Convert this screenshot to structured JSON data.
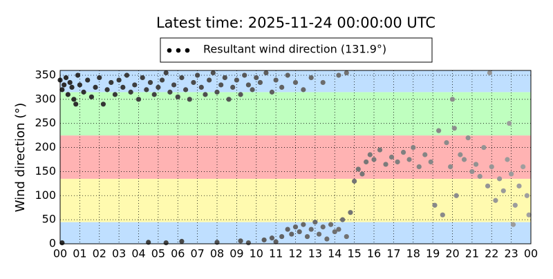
{
  "chart_data": {
    "type": "scatter",
    "title": "Latest time: 2025-11-24 00:00:00 UTC",
    "y_label": "Wind direction (°)",
    "legend": "top",
    "grid": true,
    "xlim": [
      0,
      24
    ],
    "ylim": [
      0,
      360
    ],
    "xticks": [
      {
        "value": 0,
        "label": "00"
      },
      {
        "value": 1,
        "label": "01"
      },
      {
        "value": 2,
        "label": "02"
      },
      {
        "value": 3,
        "label": "03"
      },
      {
        "value": 4,
        "label": "04"
      },
      {
        "value": 5,
        "label": "05"
      },
      {
        "value": 6,
        "label": "06"
      },
      {
        "value": 7,
        "label": "07"
      },
      {
        "value": 8,
        "label": "08"
      },
      {
        "value": 9,
        "label": "09"
      },
      {
        "value": 10,
        "label": "10"
      },
      {
        "value": 11,
        "label": "11"
      },
      {
        "value": 12,
        "label": "12"
      },
      {
        "value": 13,
        "label": "13"
      },
      {
        "value": 14,
        "label": "14"
      },
      {
        "value": 15,
        "label": "15"
      },
      {
        "value": 16,
        "label": "16"
      },
      {
        "value": 17,
        "label": "17"
      },
      {
        "value": 18,
        "label": "18"
      },
      {
        "value": 19,
        "label": "19"
      },
      {
        "value": 20,
        "label": "20"
      },
      {
        "value": 21,
        "label": "21"
      },
      {
        "value": 22,
        "label": "22"
      },
      {
        "value": 23,
        "label": "23"
      },
      {
        "value": 24,
        "label": "00"
      }
    ],
    "yticks": [
      0,
      50,
      100,
      150,
      200,
      250,
      300,
      350
    ],
    "bands": [
      {
        "from": 0,
        "to": 45,
        "color": "#bfdfff"
      },
      {
        "from": 45,
        "to": 135,
        "color": "#fffaaf"
      },
      {
        "from": 135,
        "to": 225,
        "color": "#ffb3b3"
      },
      {
        "from": 225,
        "to": 315,
        "color": "#bfffbf"
      },
      {
        "from": 315,
        "to": 360,
        "color": "#bfdfff"
      }
    ],
    "point_colors": [
      "#2a2a2a",
      "#a0a0a0"
    ],
    "series": [
      {
        "name": "Resultant wind direction (131.9°)",
        "color": "#000000",
        "x": [
          0.0,
          0.1,
          0.2,
          0.3,
          0.4,
          0.5,
          0.6,
          0.7,
          0.8,
          0.9,
          1.0,
          1.2,
          1.4,
          1.6,
          1.8,
          2.0,
          2.2,
          2.4,
          2.6,
          2.8,
          3.0,
          3.2,
          3.4,
          3.6,
          3.8,
          4.0,
          4.2,
          4.4,
          4.6,
          4.8,
          5.0,
          5.2,
          5.4,
          5.6,
          5.8,
          6.0,
          6.2,
          6.4,
          6.6,
          6.8,
          7.0,
          7.2,
          7.4,
          7.6,
          7.8,
          8.0,
          8.2,
          8.4,
          8.6,
          8.8,
          9.0,
          9.2,
          9.4,
          9.6,
          9.8,
          10.0,
          10.2,
          10.5,
          10.8,
          11.0,
          11.3,
          11.6,
          12.0,
          12.4,
          12.8,
          13.4,
          14.2,
          14.6,
          0.1,
          4.5,
          5.4,
          6.2,
          8.0,
          9.2,
          9.6,
          10.4,
          10.8,
          11.0,
          11.3,
          11.6,
          11.8,
          12.0,
          12.2,
          12.4,
          12.6,
          12.8,
          13.0,
          13.2,
          13.4,
          13.6,
          13.8,
          14.0,
          14.2,
          14.4,
          14.6,
          14.8,
          15.0,
          15.2,
          15.4,
          15.6,
          15.8,
          16.0,
          16.3,
          16.6,
          16.9,
          17.2,
          17.5,
          17.8,
          18.0,
          18.3,
          18.6,
          18.9,
          19.1,
          19.3,
          19.5,
          19.7,
          19.9,
          20.1,
          20.2,
          20.4,
          20.6,
          20.8,
          21.0,
          21.2,
          21.4,
          21.6,
          21.8,
          22.0,
          22.2,
          22.4,
          22.6,
          22.8,
          23.0,
          23.2,
          23.4,
          23.6,
          23.8,
          23.9,
          23.1,
          21.9,
          20.0,
          22.9
        ],
        "values": [
          340,
          320,
          330,
          345,
          310,
          335,
          325,
          300,
          290,
          350,
          330,
          315,
          340,
          305,
          325,
          345,
          290,
          320,
          335,
          310,
          340,
          325,
          350,
          315,
          330,
          300,
          345,
          320,
          335,
          310,
          325,
          340,
          355,
          315,
          330,
          305,
          345,
          320,
          300,
          335,
          350,
          325,
          310,
          340,
          355,
          315,
          330,
          345,
          300,
          325,
          340,
          310,
          350,
          330,
          320,
          345,
          335,
          355,
          315,
          340,
          325,
          350,
          335,
          320,
          345,
          335,
          350,
          355,
          2,
          3,
          2,
          5,
          3,
          6,
          2,
          8,
          12,
          4,
          15,
          30,
          20,
          35,
          25,
          40,
          15,
          30,
          45,
          20,
          35,
          10,
          40,
          25,
          30,
          50,
          15,
          65,
          130,
          155,
          145,
          170,
          185,
          175,
          195,
          165,
          180,
          170,
          190,
          175,
          200,
          160,
          185,
          170,
          80,
          235,
          60,
          210,
          160,
          240,
          100,
          185,
          175,
          220,
          150,
          165,
          140,
          200,
          120,
          160,
          90,
          135,
          110,
          175,
          145,
          80,
          120,
          160,
          100,
          60,
          40,
          355,
          300,
          250
        ]
      }
    ]
  }
}
